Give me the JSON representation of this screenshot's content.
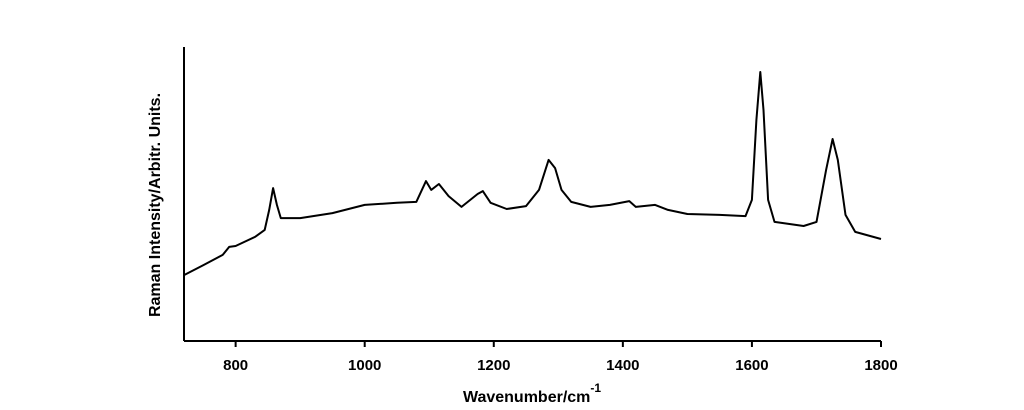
{
  "chart_data": {
    "type": "line",
    "xlabel": "Wavenumber/cm",
    "xlabel_sup": "-1",
    "ylabel": "Raman Intensity/Arbitr. Units.",
    "xlim": [
      720,
      1800
    ],
    "xticks": [
      800,
      1000,
      1200,
      1400,
      1600,
      1800
    ],
    "ylim": [
      0,
      100
    ],
    "color": "#000000",
    "x": [
      720,
      750,
      780,
      790,
      800,
      830,
      845,
      852,
      858,
      864,
      870,
      900,
      950,
      1000,
      1050,
      1080,
      1095,
      1103,
      1115,
      1130,
      1150,
      1175,
      1183,
      1195,
      1220,
      1250,
      1270,
      1285,
      1295,
      1305,
      1320,
      1350,
      1380,
      1410,
      1420,
      1450,
      1470,
      1500,
      1550,
      1590,
      1600,
      1607,
      1613,
      1618,
      1625,
      1635,
      1680,
      1700,
      1715,
      1725,
      1733,
      1745,
      1760,
      1800
    ],
    "values": [
      22.4,
      25.8,
      29.3,
      32,
      32.3,
      35.4,
      37.8,
      44.6,
      52,
      46.3,
      41.8,
      41.8,
      43.5,
      46.3,
      47,
      47.3,
      54.4,
      51.4,
      53.4,
      49.3,
      45.6,
      50,
      51,
      47,
      44.9,
      45.9,
      51.4,
      61.6,
      58.8,
      51.4,
      47.3,
      45.6,
      46.3,
      47.6,
      45.6,
      46.3,
      44.6,
      43.2,
      42.9,
      42.5,
      48,
      75.2,
      91.5,
      78.6,
      48,
      40.5,
      39.1,
      40.5,
      58.2,
      68.7,
      61.6,
      42.9,
      37.1,
      34.7
    ]
  }
}
